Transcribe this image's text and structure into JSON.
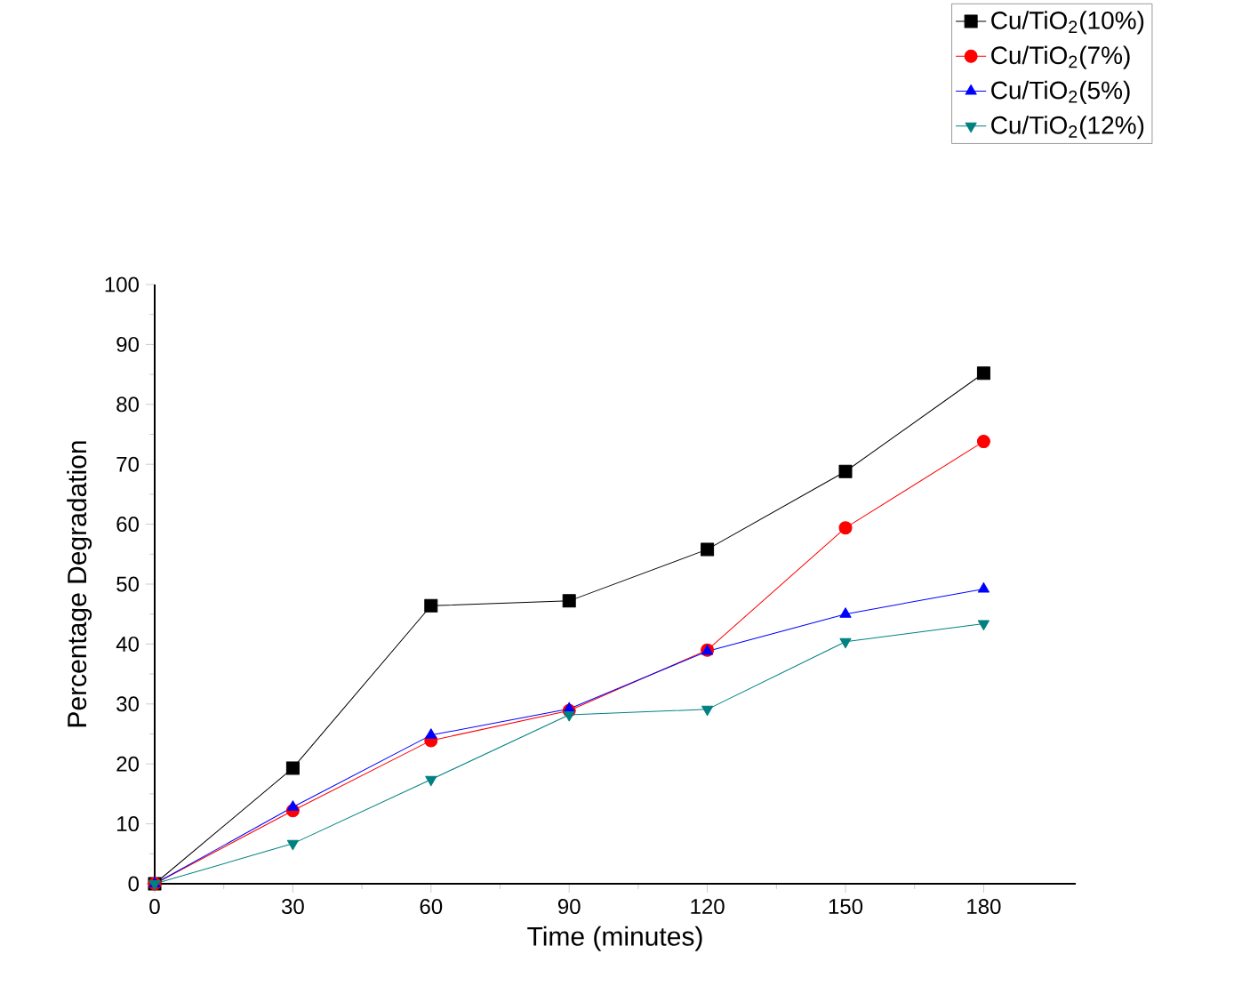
{
  "chart_data": {
    "type": "line",
    "xlabel": "Time (minutes)",
    "ylabel": "Percentage Degradation",
    "x": [
      0,
      30,
      60,
      90,
      120,
      150,
      180
    ],
    "xlim": [
      0,
      200
    ],
    "ylim": [
      0,
      100
    ],
    "xticks": [
      0,
      30,
      60,
      90,
      120,
      150,
      180
    ],
    "yticks": [
      0,
      10,
      20,
      30,
      40,
      50,
      60,
      70,
      80,
      90,
      100
    ],
    "grid": false,
    "legend": "top right",
    "line_style": "solid",
    "series": [
      {
        "name": "Cu/TiO$_{2}$(10%)",
        "color": "#000000",
        "marker": "square",
        "values": [
          0,
          19.3,
          46.4,
          47.2,
          55.8,
          68.8,
          85.2
        ]
      },
      {
        "name": "Cu/TiO$_{2}$(7%)",
        "color": "#ff0000",
        "marker": "circle",
        "values": [
          0,
          12.2,
          23.9,
          28.9,
          39.0,
          59.4,
          73.8
        ]
      },
      {
        "name": "Cu/TiO$_{2}$(5%)",
        "color": "#0000ff",
        "marker": "triangle",
        "values": [
          0,
          12.8,
          24.8,
          29.2,
          38.8,
          45.0,
          49.2
        ]
      },
      {
        "name": "Cu/TiO$_{2}$(12%)",
        "color": "#008080",
        "marker": "triangle down",
        "values": [
          0,
          6.7,
          17.4,
          28.2,
          29.1,
          40.4,
          43.4
        ]
      }
    ]
  }
}
